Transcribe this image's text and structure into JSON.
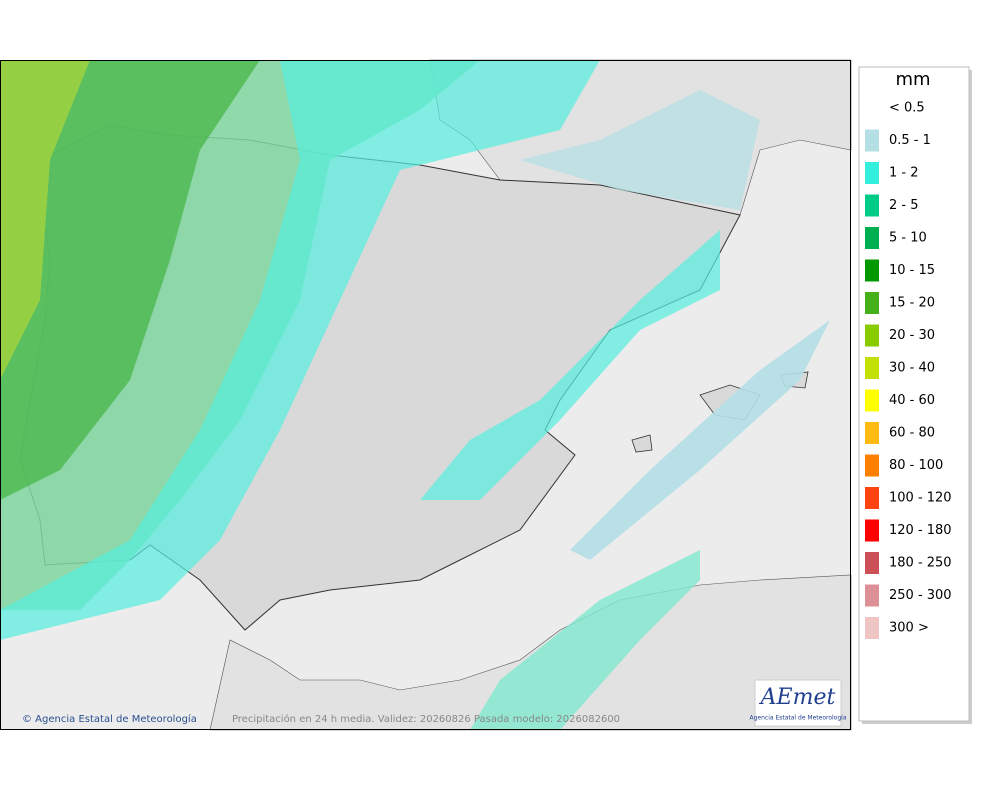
{
  "legend": {
    "unit": "mm",
    "items": [
      {
        "label": "< 0.5",
        "color": "#ffffff"
      },
      {
        "label": "0.5 - 1",
        "color": "#b4dfe5"
      },
      {
        "label": "1 - 2",
        "color": "#33eedd"
      },
      {
        "label": "2 - 5",
        "color": "#00cc88"
      },
      {
        "label": "5 - 10",
        "color": "#00b050"
      },
      {
        "label": "10 - 15",
        "color": "#009900"
      },
      {
        "label": "15 - 20",
        "color": "#44b01a"
      },
      {
        "label": "20 - 30",
        "color": "#88cc00"
      },
      {
        "label": "30 - 40",
        "color": "#c4e000"
      },
      {
        "label": "40 - 60",
        "color": "#ffff00"
      },
      {
        "label": "60 - 80",
        "color": "#ffbb11"
      },
      {
        "label": "80 - 100",
        "color": "#ff7f00"
      },
      {
        "label": "100 - 120",
        "color": "#ff4411"
      },
      {
        "label": "120 - 180",
        "color": "#ff0000"
      },
      {
        "label": "180 - 250",
        "color": "#cc5055"
      },
      {
        "label": "250 - 300",
        "color": "#dd9095"
      },
      {
        "label": "300 >",
        "color": "#eec4c4"
      }
    ]
  },
  "footer": {
    "credit": "© Agencia Estatal de Meteorología",
    "caption": "Precipitación en 24 h media. Validez: 20260826 Pasada modelo: 2026082600"
  },
  "logo": {
    "name": "AEmet",
    "subtitle": "Agencia Estatal de Meteorología"
  }
}
